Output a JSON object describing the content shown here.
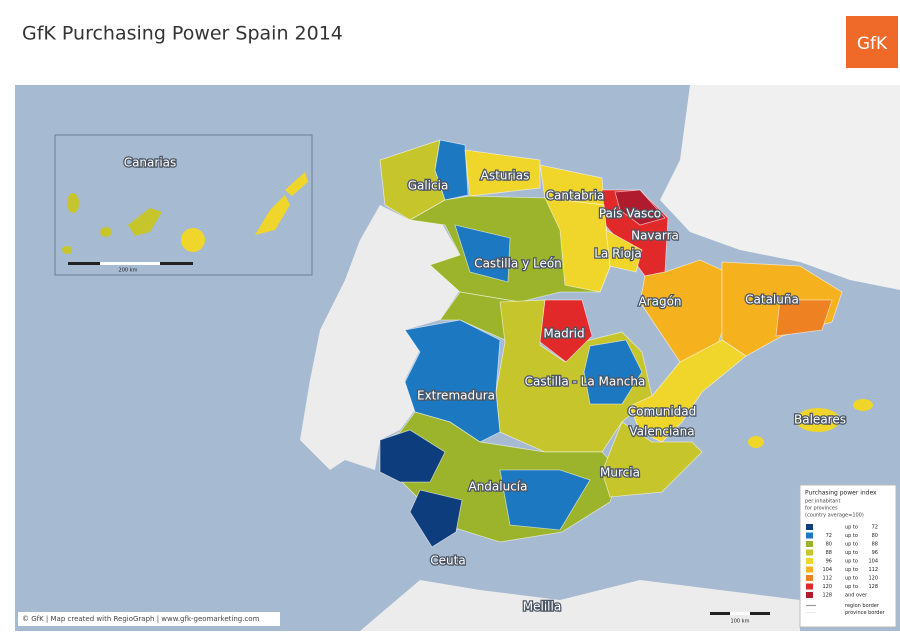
{
  "header": {
    "title": "GfK Purchasing Power Spain 2014",
    "logo": "GfK"
  },
  "map": {
    "inset_label": "Canarias",
    "inset_scale": "200 km",
    "regions": [
      "Galicia",
      "Asturias",
      "Cantabria",
      "País Vasco",
      "Navarra",
      "La Rioja",
      "Castilla y León",
      "Aragón",
      "Cataluña",
      "Madrid",
      "Castilla - La Mancha",
      "Extremadura",
      "Comunidad",
      "Valenciana",
      "Baleares",
      "Murcia",
      "Andalucía",
      "Ceuta",
      "Melilla"
    ],
    "scale": "100 km",
    "credit": "© GfK | Map created with RegioGraph | www.gfk-geomarketing.com"
  },
  "legend": {
    "title": "Purchasing power index",
    "subtitle": [
      "per inhabitant",
      "for provinces",
      "(country average=100)"
    ],
    "rows": [
      {
        "color": "#0e3d7e",
        "connector": "up to",
        "to": 72
      },
      {
        "color": "#1c78c0",
        "from": 72,
        "connector": "up to",
        "to": 80
      },
      {
        "color": "#9cb42b",
        "from": 80,
        "connector": "up to",
        "to": 88
      },
      {
        "color": "#c7c52c",
        "from": 88,
        "connector": "up to",
        "to": 96
      },
      {
        "color": "#f0d52a",
        "from": 96,
        "connector": "up to",
        "to": 104
      },
      {
        "color": "#f5b21e",
        "from": 104,
        "connector": "up to",
        "to": 112
      },
      {
        "color": "#ee8121",
        "from": 112,
        "connector": "up to",
        "to": 120
      },
      {
        "color": "#e2292a",
        "from": 120,
        "connector": "up to",
        "to": 128
      },
      {
        "color": "#b01c2e",
        "from": 128,
        "connector": "and over"
      }
    ],
    "borders": [
      "region border",
      "province border"
    ]
  }
}
